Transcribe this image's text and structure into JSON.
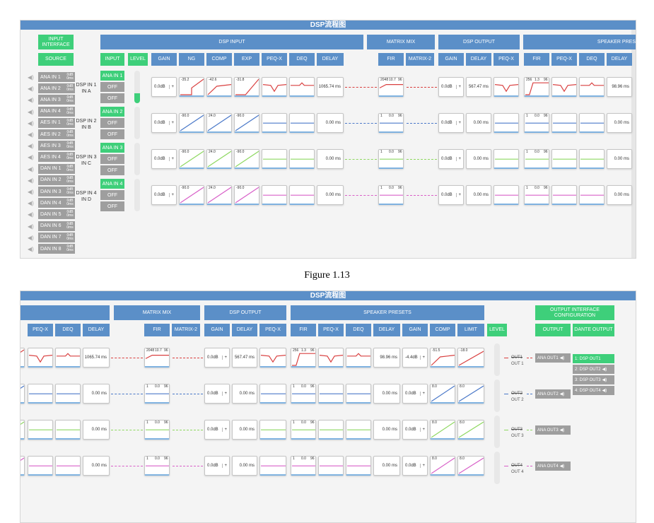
{
  "panel_title": "DSP流程图",
  "caption": "Figure 1.13",
  "input_panel": {
    "headers": {
      "input_interface": "INPUT INTERFACE",
      "source": "SOURCE",
      "input": "INPUT",
      "level": "LEVEL",
      "dsp_input": "DSP INPUT",
      "matrix_mix": "MATRIX MIX",
      "dsp_output": "DSP OUTPUT",
      "speaker_presets": "SPEAKER PRES",
      "gain": "GAIN",
      "ng": "NG",
      "comp": "COMP",
      "exp": "EXP",
      "peqx": "PEQ-X",
      "deq": "DEQ",
      "delay": "DELAY",
      "fir": "FIR",
      "matrix2": "MATRIX-2",
      "out_gain": "GAIN",
      "out_delay": "DELAY",
      "out_peqx": "PEQ-X",
      "sp_fir": "FIR",
      "sp_peqx": "PEQ-X",
      "sp_deq": "DEQ",
      "sp_delay": "DELAY"
    },
    "sources": [
      {
        "name": "ANA IN 1",
        "db": "0dB",
        "ms": "0ms"
      },
      {
        "name": "ANA IN 2",
        "db": "0dB",
        "ms": "0ms"
      },
      {
        "name": "ANA IN 3",
        "db": "0dB",
        "ms": "0ms"
      },
      {
        "name": "ANA IN 4",
        "db": "0dB",
        "ms": "0ms"
      },
      {
        "name": "AES IN 1",
        "db": "0dB",
        "ms": "0ms"
      },
      {
        "name": "AES IN 2",
        "db": "0dB",
        "ms": "0ms"
      },
      {
        "name": "AES IN 3",
        "db": "0dB",
        "ms": "0ms"
      },
      {
        "name": "AES IN 4",
        "db": "0dB",
        "ms": "0ms"
      },
      {
        "name": "DAN IN 1",
        "db": "0dB",
        "ms": "0ms"
      },
      {
        "name": "DAN IN 2",
        "db": "0dB",
        "ms": "0ms"
      },
      {
        "name": "DAN IN 3",
        "db": "0dB",
        "ms": "0ms"
      },
      {
        "name": "DAN IN 4",
        "db": "0dB",
        "ms": "0ms"
      },
      {
        "name": "DAN IN 5",
        "db": "0dB",
        "ms": "0ms"
      },
      {
        "name": "DAN IN 6",
        "db": "0dB",
        "ms": "0ms"
      },
      {
        "name": "DAN IN 7",
        "db": "0dB",
        "ms": "0ms"
      },
      {
        "name": "DAN IN 8",
        "db": "0dB",
        "ms": "0ms"
      }
    ],
    "channels": [
      {
        "dsp_in": "DSP IN 1",
        "dsp_sub": "IN A",
        "buttons": [
          "ANA IN 1",
          "OFF",
          "OFF"
        ],
        "active_button": 0,
        "level": 0.3,
        "color": "#d94040",
        "gain": "0.0dB",
        "ng": "-35.2",
        "comp": "-42.6",
        "exp": "-31.8",
        "delay": "1065.74 ms",
        "fir_label": "2048",
        "fir_mid": "10.7",
        "fir_right": "96",
        "out_gain": "0.0dB",
        "out_delay": "567.47 ms",
        "sp_fir_label": "256",
        "sp_fir_mid": "1.3",
        "sp_fir_right": "96",
        "sp_delay": "98.96 ms"
      },
      {
        "dsp_in": "DSP IN 2",
        "dsp_sub": "IN B",
        "buttons": [
          "ANA IN 2",
          "OFF",
          "OFF"
        ],
        "active_button": 0,
        "level": 0,
        "color": "#4a78c8",
        "gain": "0.0dB",
        "ng": "-90.0",
        "comp": "24.0",
        "exp": "-90.0",
        "delay": "0.00 ms",
        "fir_label": "1",
        "fir_mid": "0.0",
        "fir_right": "96",
        "out_gain": "0.0dB",
        "out_delay": "0.00 ms",
        "sp_fir_label": "1",
        "sp_fir_mid": "0.0",
        "sp_fir_right": "96",
        "sp_delay": "0.00 ms"
      },
      {
        "dsp_in": "DSP IN 3",
        "dsp_sub": "IN C",
        "buttons": [
          "ANA IN 3",
          "OFF",
          "OFF"
        ],
        "active_button": 0,
        "level": 0,
        "color": "#8ed860",
        "gain": "0.0dB",
        "ng": "-90.0",
        "comp": "24.0",
        "exp": "-90.0",
        "delay": "0.00 ms",
        "fir_label": "1",
        "fir_mid": "0.0",
        "fir_right": "96",
        "out_gain": "0.0dB",
        "out_delay": "0.00 ms",
        "sp_fir_label": "1",
        "sp_fir_mid": "0.0",
        "sp_fir_right": "96",
        "sp_delay": "0.00 ms"
      },
      {
        "dsp_in": "DSP IN 4",
        "dsp_sub": "IN D",
        "buttons": [
          "ANA IN 4",
          "OFF",
          "OFF"
        ],
        "active_button": 0,
        "level": 0,
        "color": "#d860c8",
        "gain": "0.0dB",
        "ng": "-90.0",
        "comp": "24.0",
        "exp": "-90.0",
        "delay": "0.00 ms",
        "fir_label": "1",
        "fir_mid": "0.0",
        "fir_right": "96",
        "out_gain": "0.0dB",
        "out_delay": "0.00 ms",
        "sp_fir_label": "1",
        "sp_fir_mid": "0.0",
        "sp_fir_right": "96",
        "sp_delay": "0.00 ms"
      }
    ]
  },
  "output_panel": {
    "headers": {
      "matrix_mix": "MATRIX MIX",
      "dsp_output": "DSP OUTPUT",
      "speaker_presets": "SPEAKER PRESETS",
      "output_interface": "OUTPUT INTERFACE CONFIGURATION",
      "peqx": "PEQ-X",
      "deq": "DEQ",
      "delay": "DELAY",
      "fir": "FIR",
      "matrix2": "MATRIX-2",
      "gain": "GAIN",
      "o_delay": "DELAY",
      "o_peqx": "PEQ-X",
      "sp_fir": "FIR",
      "sp_peqx": "PEQ-X",
      "sp_deq": "DEQ",
      "sp_delay": "DELAY",
      "sp_gain": "GAIN",
      "sp_comp": "COMP",
      "sp_limit": "LIMIT",
      "level": "LEVEL",
      "output": "OUTPUT",
      "dante_output": "DANTE OUTPUT"
    },
    "channels": [
      {
        "delay": "1065.74 ms",
        "fir_label": "2048",
        "fir_mid": "10.7",
        "fir_right": "96",
        "gain": "0.0dB",
        "o_delay": "567.47 ms",
        "sp_fir_label": "256",
        "sp_fir_mid": "1.3",
        "sp_fir_right": "96",
        "sp_delay": "98.96 ms",
        "sp_gain": "-4.4dB",
        "comp": "-51.5",
        "limit": "-18.0",
        "out_tag": "OUT1",
        "out_sub": "OUT 1",
        "ana_out": "ANA OUT1",
        "color": "#d94040"
      },
      {
        "delay": "0.00 ms",
        "fir_label": "1",
        "fir_mid": "0.0",
        "fir_right": "96",
        "gain": "0.0dB",
        "o_delay": "0.00 ms",
        "sp_fir_label": "1",
        "sp_fir_mid": "0.0",
        "sp_fir_right": "96",
        "sp_delay": "0.00 ms",
        "sp_gain": "0.0dB",
        "comp": "8.0",
        "limit": "8.0",
        "out_tag": "OUT2",
        "out_sub": "OUT 2",
        "ana_out": "ANA OUT2",
        "color": "#4a78c8"
      },
      {
        "delay": "0.00 ms",
        "fir_label": "1",
        "fir_mid": "0.0",
        "fir_right": "96",
        "gain": "0.0dB",
        "o_delay": "0.00 ms",
        "sp_fir_label": "1",
        "sp_fir_mid": "0.0",
        "sp_fir_right": "96",
        "sp_delay": "0.00 ms",
        "sp_gain": "0.0dB",
        "comp": "8.0",
        "limit": "8.0",
        "out_tag": "OUT3",
        "out_sub": "OUT 3",
        "ana_out": "ANA OUT3",
        "color": "#8ed860"
      },
      {
        "delay": "0.00 ms",
        "fir_label": "1",
        "fir_mid": "0.0",
        "fir_right": "96",
        "gain": "0.0dB",
        "o_delay": "0.00 ms",
        "sp_fir_label": "1",
        "sp_fir_mid": "0.0",
        "sp_fir_right": "96",
        "sp_delay": "0.00 ms",
        "sp_gain": "0.0dB",
        "comp": "8.0",
        "limit": "8.0",
        "out_tag": "OUT4",
        "out_sub": "OUT 4",
        "ana_out": "ANA OUT4",
        "color": "#d860c8"
      }
    ],
    "dante_outputs": [
      {
        "label": "1: DSP OUT1",
        "active": true
      },
      {
        "label": "2: DSP OUT2",
        "active": false
      },
      {
        "label": "3: DSP OUT3",
        "active": false
      },
      {
        "label": "4: DSP OUT4",
        "active": false
      }
    ]
  }
}
